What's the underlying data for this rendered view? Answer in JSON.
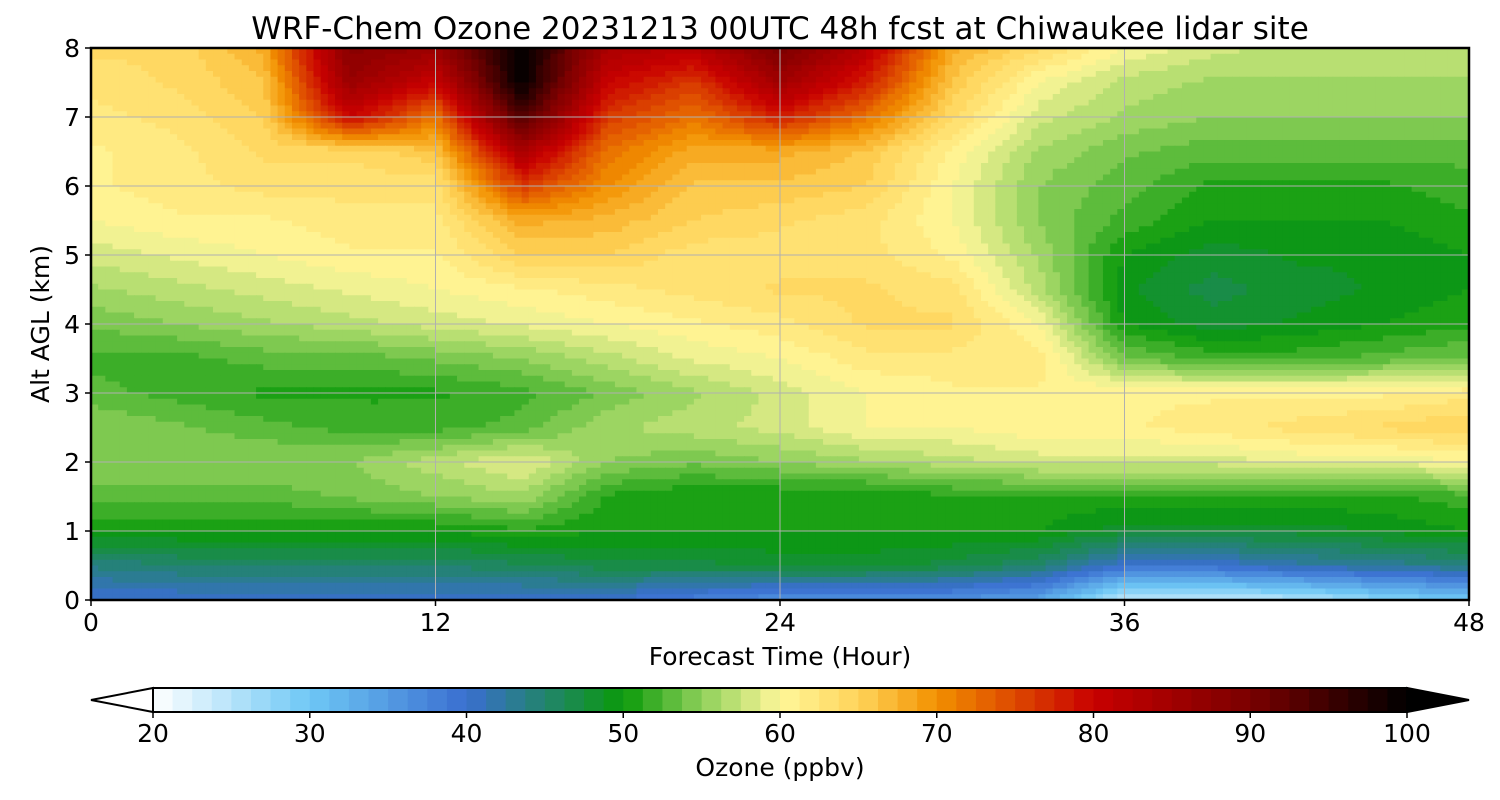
{
  "chart_data": {
    "type": "heatmap",
    "title": "WRF-Chem Ozone  20231213 00UTC 48h fcst at Chiwaukee lidar site",
    "xlabel": "Forecast Time (Hour)",
    "ylabel": "Alt AGL (km)",
    "xlim": [
      0,
      48
    ],
    "ylim": [
      0,
      8
    ],
    "xticks": [
      0,
      12,
      24,
      36,
      48
    ],
    "yticks": [
      0,
      1,
      2,
      3,
      4,
      5,
      6,
      7,
      8
    ],
    "grid": true,
    "colorbar": {
      "label": "Ozone  (ppbv)",
      "min": 20,
      "max": 100,
      "ticks": [
        20,
        30,
        40,
        50,
        60,
        70,
        80,
        90,
        100
      ],
      "extend": "both",
      "stops": [
        {
          "v": 20,
          "c": "#ffffff"
        },
        {
          "v": 30,
          "c": "#6ec8f5"
        },
        {
          "v": 40,
          "c": "#3a6ed0"
        },
        {
          "v": 50,
          "c": "#0a9a0a"
        },
        {
          "v": 55,
          "c": "#8ed05a"
        },
        {
          "v": 60,
          "c": "#fff79a"
        },
        {
          "v": 65,
          "c": "#ffd45a"
        },
        {
          "v": 70,
          "c": "#f29000"
        },
        {
          "v": 80,
          "c": "#c80000"
        },
        {
          "v": 90,
          "c": "#7a0000"
        },
        {
          "v": 100,
          "c": "#000000"
        }
      ]
    },
    "altitudes_km": [
      0,
      0.5,
      1,
      1.5,
      2,
      2.5,
      3,
      3.5,
      4,
      4.5,
      5,
      5.5,
      6,
      6.5,
      7,
      7.5,
      8
    ],
    "forecast_hours": [
      0,
      3,
      6,
      9,
      12,
      15,
      18,
      21,
      24,
      27,
      30,
      33,
      36,
      39,
      42,
      45,
      48
    ],
    "ozone_ppbv": [
      [
        40,
        40,
        40,
        40,
        40,
        40,
        40,
        38,
        36,
        36,
        36,
        34,
        24,
        24,
        25,
        28,
        30
      ],
      [
        44,
        45,
        45,
        45,
        45,
        46,
        47,
        47,
        48,
        48,
        47,
        45,
        40,
        40,
        42,
        43,
        44
      ],
      [
        50,
        50,
        50,
        50,
        50,
        51,
        50,
        50,
        50,
        50,
        50,
        50,
        48,
        48,
        48,
        49,
        50
      ],
      [
        53,
        53,
        53,
        54,
        55,
        56,
        51,
        50,
        50,
        50,
        51,
        51,
        51,
        51,
        51,
        51,
        52
      ],
      [
        55,
        55,
        55,
        55,
        57,
        59,
        55,
        54,
        55,
        56,
        57,
        58,
        58,
        58,
        59,
        59,
        60
      ],
      [
        55,
        54,
        53,
        52,
        52,
        53,
        56,
        57,
        58,
        60,
        60,
        61,
        61,
        62,
        63,
        64,
        65
      ],
      [
        53,
        52,
        51,
        51,
        51,
        52,
        54,
        56,
        58,
        60,
        61,
        61,
        61,
        61,
        61,
        61,
        62
      ],
      [
        52,
        52,
        53,
        53,
        54,
        55,
        57,
        59,
        60,
        62,
        62,
        62,
        54,
        52,
        52,
        53,
        54
      ],
      [
        54,
        55,
        56,
        57,
        58,
        59,
        60,
        61,
        62,
        64,
        64,
        60,
        50,
        48,
        49,
        50,
        51
      ],
      [
        56,
        57,
        58,
        59,
        60,
        61,
        62,
        63,
        64,
        64,
        63,
        57,
        49,
        47,
        48,
        49,
        50
      ],
      [
        58,
        59,
        60,
        61,
        61,
        65,
        65,
        63,
        63,
        63,
        61,
        56,
        50,
        48,
        49,
        49,
        50
      ],
      [
        60,
        61,
        61,
        62,
        62,
        68,
        67,
        65,
        64,
        63,
        60,
        55,
        52,
        50,
        50,
        50,
        51
      ],
      [
        61,
        62,
        63,
        63,
        63,
        76,
        70,
        66,
        66,
        65,
        60,
        55,
        53,
        51,
        51,
        51,
        52
      ],
      [
        61,
        62,
        64,
        64,
        66,
        84,
        72,
        68,
        68,
        66,
        61,
        56,
        54,
        53,
        53,
        53,
        53
      ],
      [
        62,
        63,
        65,
        80,
        72,
        94,
        76,
        72,
        78,
        72,
        64,
        58,
        56,
        55,
        55,
        55,
        55
      ],
      [
        63,
        64,
        66,
        86,
        80,
        100,
        80,
        76,
        85,
        78,
        66,
        60,
        57,
        56,
        56,
        56,
        56
      ],
      [
        64,
        64,
        68,
        88,
        86,
        100,
        84,
        82,
        90,
        82,
        68,
        64,
        60,
        58,
        57,
        57,
        57
      ]
    ]
  }
}
